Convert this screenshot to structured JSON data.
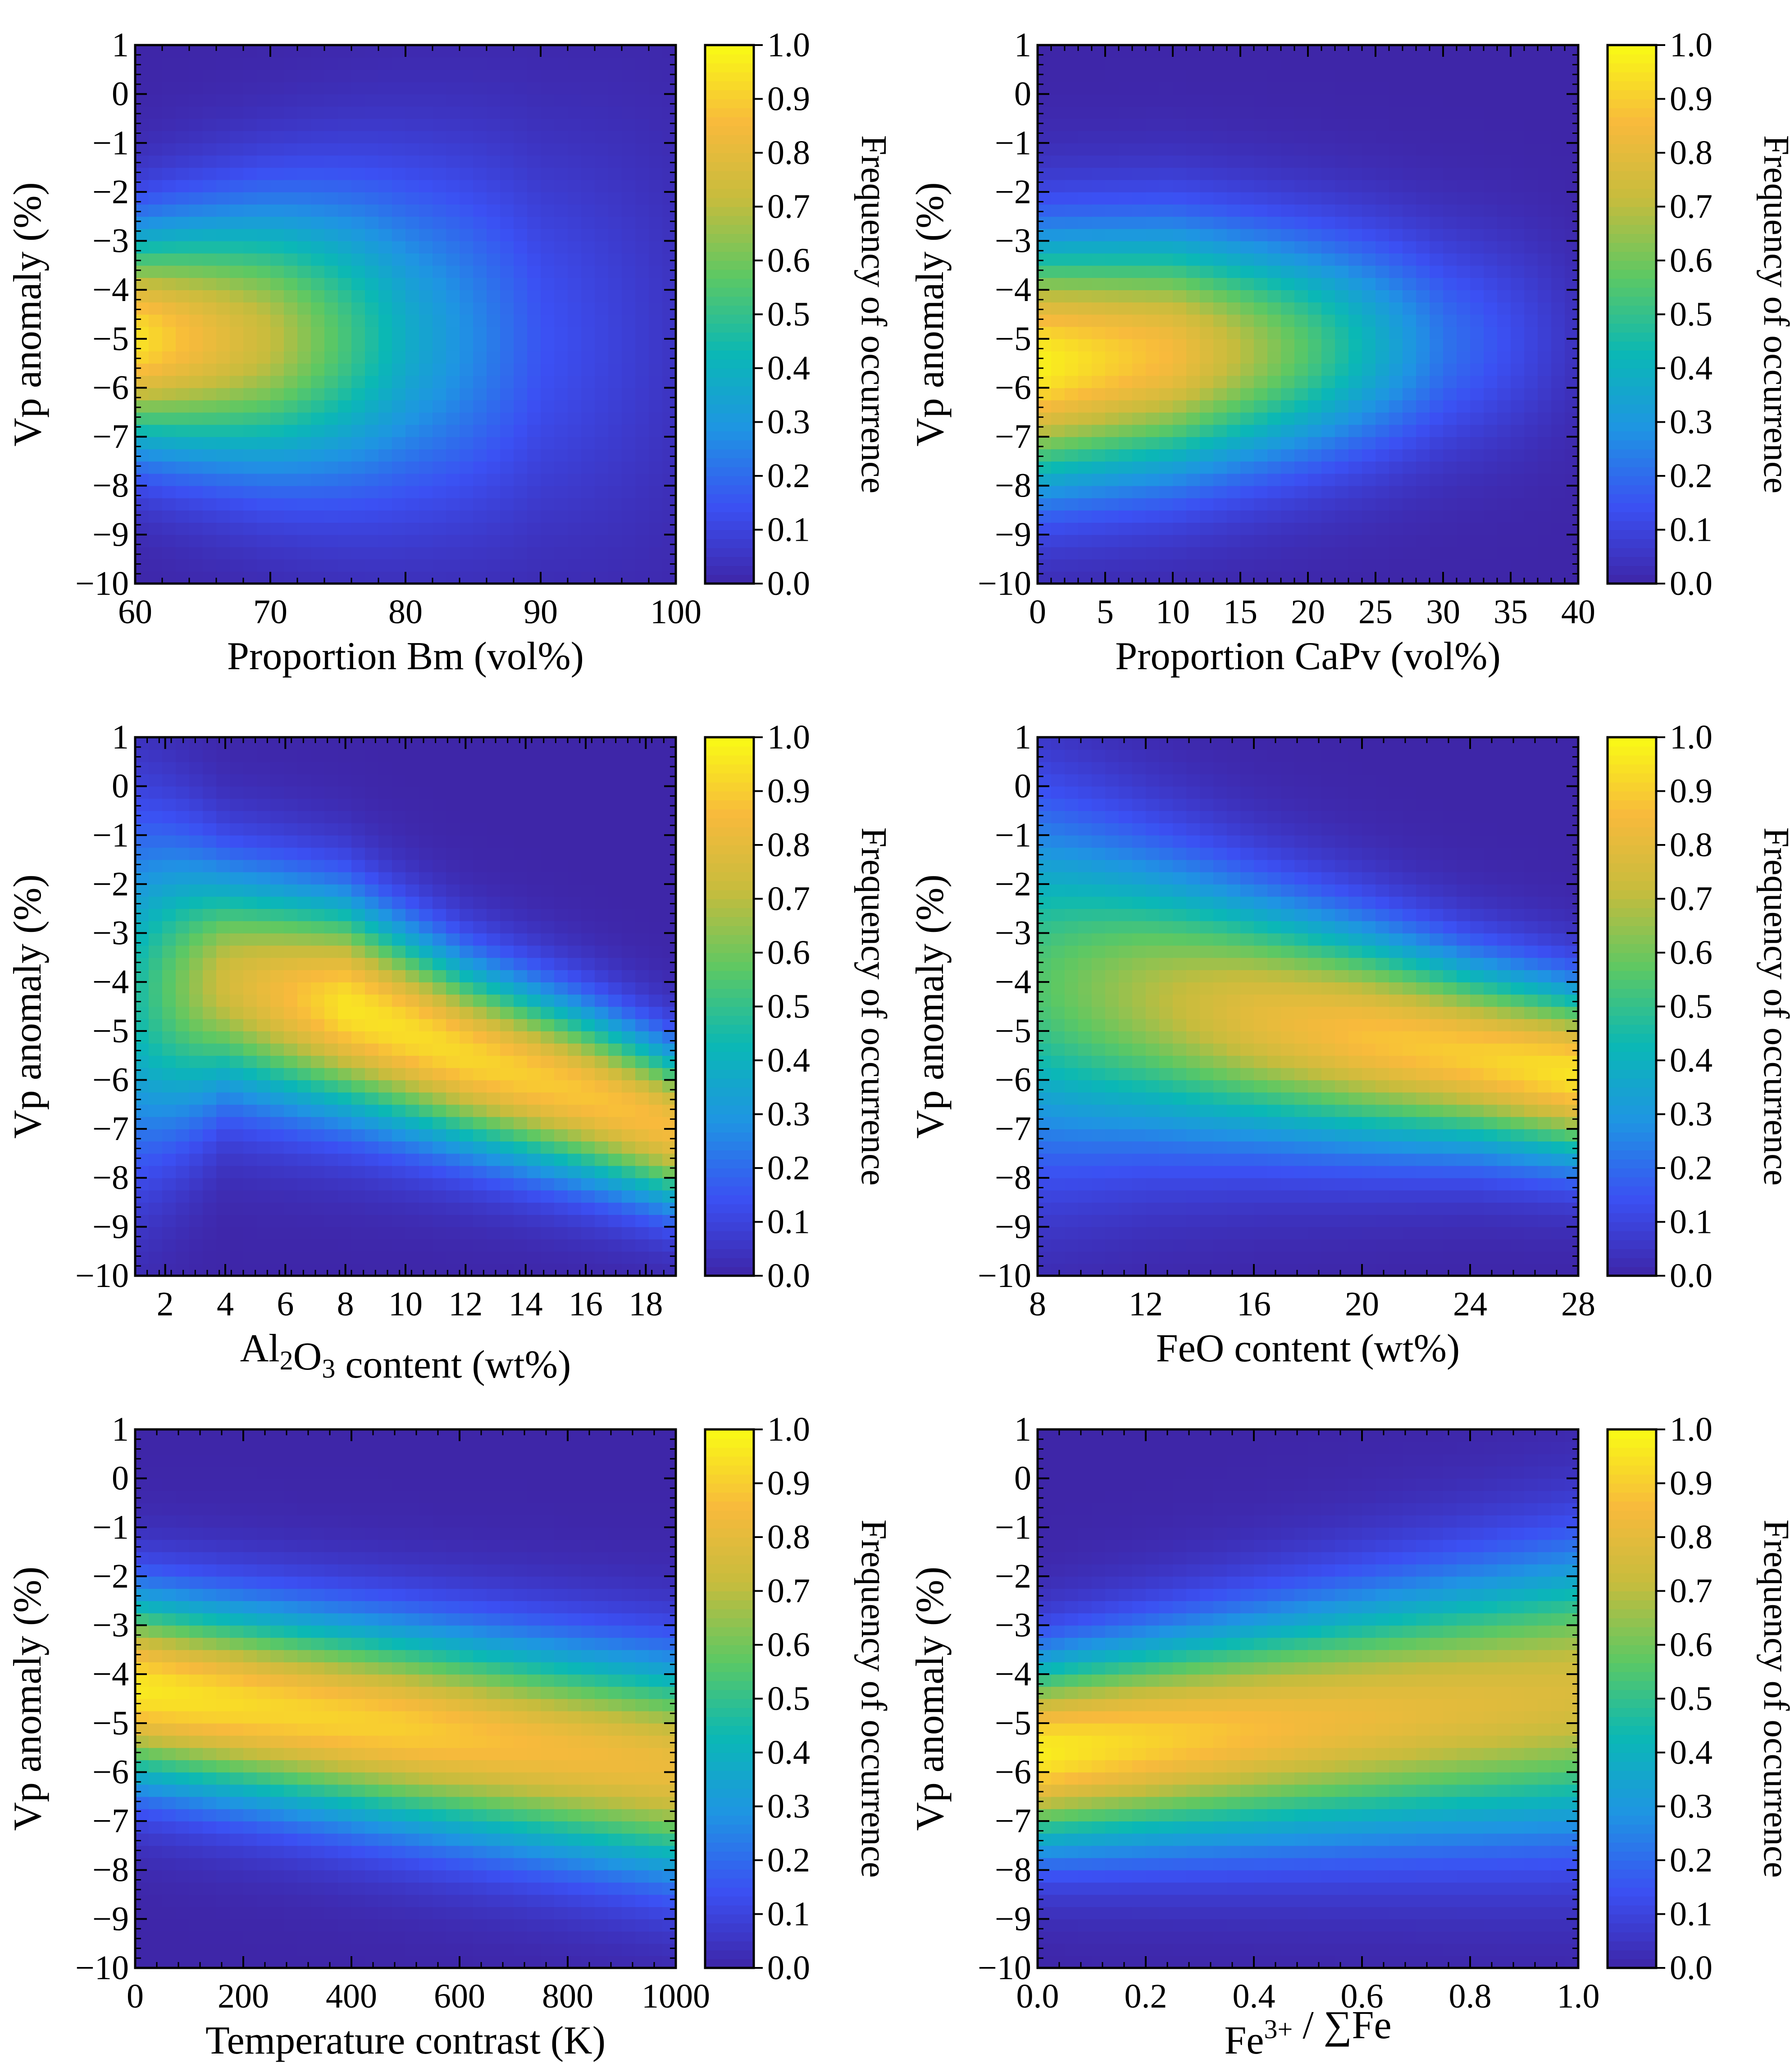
{
  "colors": {
    "scale": [
      "#3e26a8",
      "#3b50f3",
      "#1f94e3",
      "#0ab8b5",
      "#5dc863",
      "#c6bc3d",
      "#f8ba3c",
      "#f9fb15"
    ],
    "frame": "#000000"
  },
  "chart_data": [
    {
      "type": "heatmap",
      "xlabel": "Proportion Bm (vol%)",
      "ylabel": "Vp anomaly (%)",
      "colorbar_label": "Frequency of occurrence",
      "x_range": [
        60,
        100
      ],
      "y_range": [
        -10,
        1
      ],
      "x_ticks": [
        "60",
        "70",
        "80",
        "90",
        "100"
      ],
      "y_ticks": [
        "1",
        "0",
        "−1",
        "−2",
        "−3",
        "−4",
        "−5",
        "−6",
        "−7",
        "−8",
        "−9",
        "−10"
      ],
      "colorbar_ticks": [
        "1.0",
        "0.9",
        "0.8",
        "0.7",
        "0.6",
        "0.5",
        "0.4",
        "0.3",
        "0.2",
        "0.1",
        "0.0"
      ],
      "colorbar_range": [
        0,
        1
      ],
      "ridge": {
        "x": [
          60,
          70,
          80,
          90,
          100
        ],
        "y_center": [
          -5,
          -5,
          -5,
          -5,
          -5
        ],
        "peak_value": [
          0.95,
          0.72,
          0.38,
          0.15,
          0.05
        ],
        "width": [
          1.5,
          1.9,
          2.3,
          2.6,
          3.0
        ]
      }
    },
    {
      "type": "heatmap",
      "xlabel": "Proportion CaPv (vol%)",
      "ylabel": "Vp anomaly (%)",
      "colorbar_label": "Frequency of occurrence",
      "x_range": [
        0,
        40
      ],
      "y_range": [
        -10,
        1
      ],
      "x_ticks": [
        "0",
        "5",
        "10",
        "15",
        "20",
        "25",
        "30",
        "35",
        "40"
      ],
      "y_ticks": [
        "1",
        "0",
        "−1",
        "−2",
        "−3",
        "−4",
        "−5",
        "−6",
        "−7",
        "−8",
        "−9",
        "−10"
      ],
      "colorbar_ticks": [
        "1.0",
        "0.9",
        "0.8",
        "0.7",
        "0.6",
        "0.5",
        "0.4",
        "0.3",
        "0.2",
        "0.1",
        "0.0"
      ],
      "colorbar_range": [
        0,
        1
      ],
      "ridge": {
        "x": [
          0,
          10,
          20,
          30,
          40
        ],
        "y_center": [
          -5.5,
          -5.3,
          -5.2,
          -5.1,
          -5.0
        ],
        "peak_value": [
          0.98,
          0.85,
          0.55,
          0.22,
          0.04
        ],
        "width": [
          1.7,
          1.7,
          1.6,
          1.5,
          1.4
        ]
      }
    },
    {
      "type": "heatmap",
      "xlabel": "Al<sub>2</sub>O<sub>3</sub> content (wt%)",
      "ylabel": "Vp anomaly (%)",
      "colorbar_label": "Frequency of occurrence",
      "x_range": [
        1,
        19
      ],
      "y_range": [
        -10,
        1
      ],
      "x_ticks": [
        "2",
        "4",
        "6",
        "8",
        "10",
        "12",
        "14",
        "16",
        "18"
      ],
      "y_ticks": [
        "1",
        "0",
        "−1",
        "−2",
        "−3",
        "−4",
        "−5",
        "−6",
        "−7",
        "−8",
        "−9",
        "−10"
      ],
      "colorbar_ticks": [
        "1.0",
        "0.9",
        "0.8",
        "0.7",
        "0.6",
        "0.5",
        "0.4",
        "0.3",
        "0.2",
        "0.1",
        "0.0"
      ],
      "colorbar_range": [
        0,
        1
      ],
      "ridge": {
        "x": [
          1,
          4,
          8,
          12,
          16,
          19
        ],
        "y_center": [
          -4.2,
          -4.0,
          -4.5,
          -5.5,
          -6.3,
          -7.0
        ],
        "peak_value": [
          0.45,
          0.75,
          0.95,
          0.92,
          0.88,
          0.85
        ],
        "width": [
          2.4,
          1.6,
          1.5,
          1.3,
          1.2,
          1.1
        ]
      }
    },
    {
      "type": "heatmap",
      "xlabel": "FeO content (wt%)",
      "ylabel": "Vp anomaly (%)",
      "colorbar_label": "Frequency of occurrence",
      "x_range": [
        8,
        28
      ],
      "y_range": [
        -10,
        1
      ],
      "x_ticks": [
        "8",
        "12",
        "16",
        "20",
        "24",
        "28"
      ],
      "y_ticks": [
        "1",
        "0",
        "−1",
        "−2",
        "−3",
        "−4",
        "−5",
        "−6",
        "−7",
        "−8",
        "−9",
        "−10"
      ],
      "colorbar_ticks": [
        "1.0",
        "0.9",
        "0.8",
        "0.7",
        "0.6",
        "0.5",
        "0.4",
        "0.3",
        "0.2",
        "0.1",
        "0.0"
      ],
      "colorbar_range": [
        0,
        1
      ],
      "ridge": {
        "x": [
          8,
          12,
          16,
          20,
          24,
          28
        ],
        "y_center": [
          -4.0,
          -4.3,
          -4.7,
          -5.1,
          -5.5,
          -5.9
        ],
        "peak_value": [
          0.55,
          0.68,
          0.8,
          0.87,
          0.9,
          0.95
        ],
        "width": [
          2.4,
          2.0,
          1.7,
          1.5,
          1.3,
          1.2
        ]
      }
    },
    {
      "type": "heatmap",
      "xlabel": "Temperature contrast (K)",
      "ylabel": "Vp anomaly (%)",
      "colorbar_label": "Frequency of occurrence",
      "x_range": [
        0,
        1000
      ],
      "y_range": [
        -10,
        1
      ],
      "x_ticks": [
        "0",
        "200",
        "400",
        "600",
        "800",
        "1000"
      ],
      "y_ticks": [
        "1",
        "0",
        "−1",
        "−2",
        "−3",
        "−4",
        "−5",
        "−6",
        "−7",
        "−8",
        "−9",
        "−10"
      ],
      "colorbar_ticks": [
        "1.0",
        "0.9",
        "0.8",
        "0.7",
        "0.6",
        "0.5",
        "0.4",
        "0.3",
        "0.2",
        "0.1",
        "0.0"
      ],
      "colorbar_range": [
        0,
        1
      ],
      "ridge": {
        "x": [
          0,
          250,
          500,
          750,
          1000
        ],
        "y_center": [
          -4.3,
          -4.7,
          -5.1,
          -5.5,
          -5.9
        ],
        "peak_value": [
          0.96,
          0.92,
          0.9,
          0.85,
          0.82
        ],
        "width": [
          1.3,
          1.35,
          1.4,
          1.45,
          1.5
        ]
      }
    },
    {
      "type": "heatmap",
      "xlabel": "Fe<sup>3+</sup> / ∑Fe",
      "ylabel": "Vp anomaly (%)",
      "colorbar_label": "Frequency of occurrence",
      "x_range": [
        0.0,
        1.0
      ],
      "y_range": [
        -10,
        1
      ],
      "x_ticks": [
        "0.0",
        "0.2",
        "0.4",
        "0.6",
        "0.8",
        "1.0"
      ],
      "y_ticks": [
        "1",
        "0",
        "−1",
        "−2",
        "−3",
        "−4",
        "−5",
        "−6",
        "−7",
        "−8",
        "−9",
        "−10"
      ],
      "colorbar_ticks": [
        "1.0",
        "0.9",
        "0.8",
        "0.7",
        "0.6",
        "0.5",
        "0.4",
        "0.3",
        "0.2",
        "0.1",
        "0.0"
      ],
      "colorbar_range": [
        0,
        1
      ],
      "ridge": {
        "x": [
          0.0,
          0.25,
          0.5,
          0.75,
          1.0
        ],
        "y_center": [
          -5.6,
          -5.3,
          -5.0,
          -4.7,
          -4.4
        ],
        "peak_value": [
          0.97,
          0.9,
          0.84,
          0.8,
          0.77
        ],
        "width": [
          1.3,
          1.45,
          1.6,
          1.75,
          1.9
        ]
      }
    }
  ]
}
